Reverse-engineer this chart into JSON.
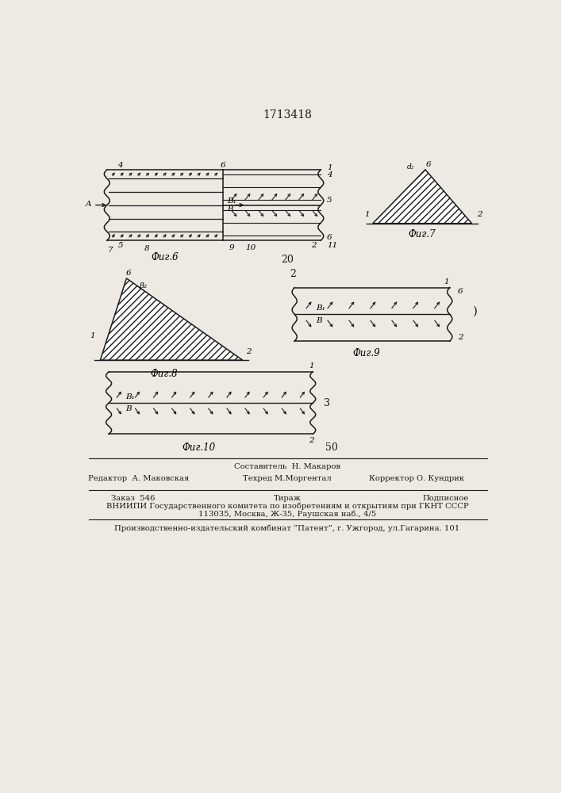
{
  "title": "1713418",
  "bg_color": "#ede9e3",
  "line_color": "#1a1a1a",
  "fig6_label": "Фиг.6",
  "fig7_label": "Фиг.7",
  "fig8_label": "Фиг.8",
  "fig9_label": "Фиг.9",
  "fig10_label": "Фиг.10",
  "page_num": "20",
  "page_num2": "50",
  "footer_line1": "Составитель  Н. Макаров",
  "footer_line2_left": "Редактор  А. Маковская",
  "footer_line2_mid": "Техред М.Моргентал",
  "footer_line2_right": "Корректор О. Кундрик",
  "footer_line3_left": "Заказ  546",
  "footer_line3_mid": "Тираж",
  "footer_line3_right": "Подписное",
  "footer_line4": "ВНИИПИ Государственного комитета по изобретениям и открытиям при ГКНТ СССР",
  "footer_line5": "113035, Москва, Ж-35, Раушская наб., 4/5",
  "footer_line6": "Производственно-издательский комбинат “Патент”, г. Ужгород, ул.Гагарина. 101"
}
